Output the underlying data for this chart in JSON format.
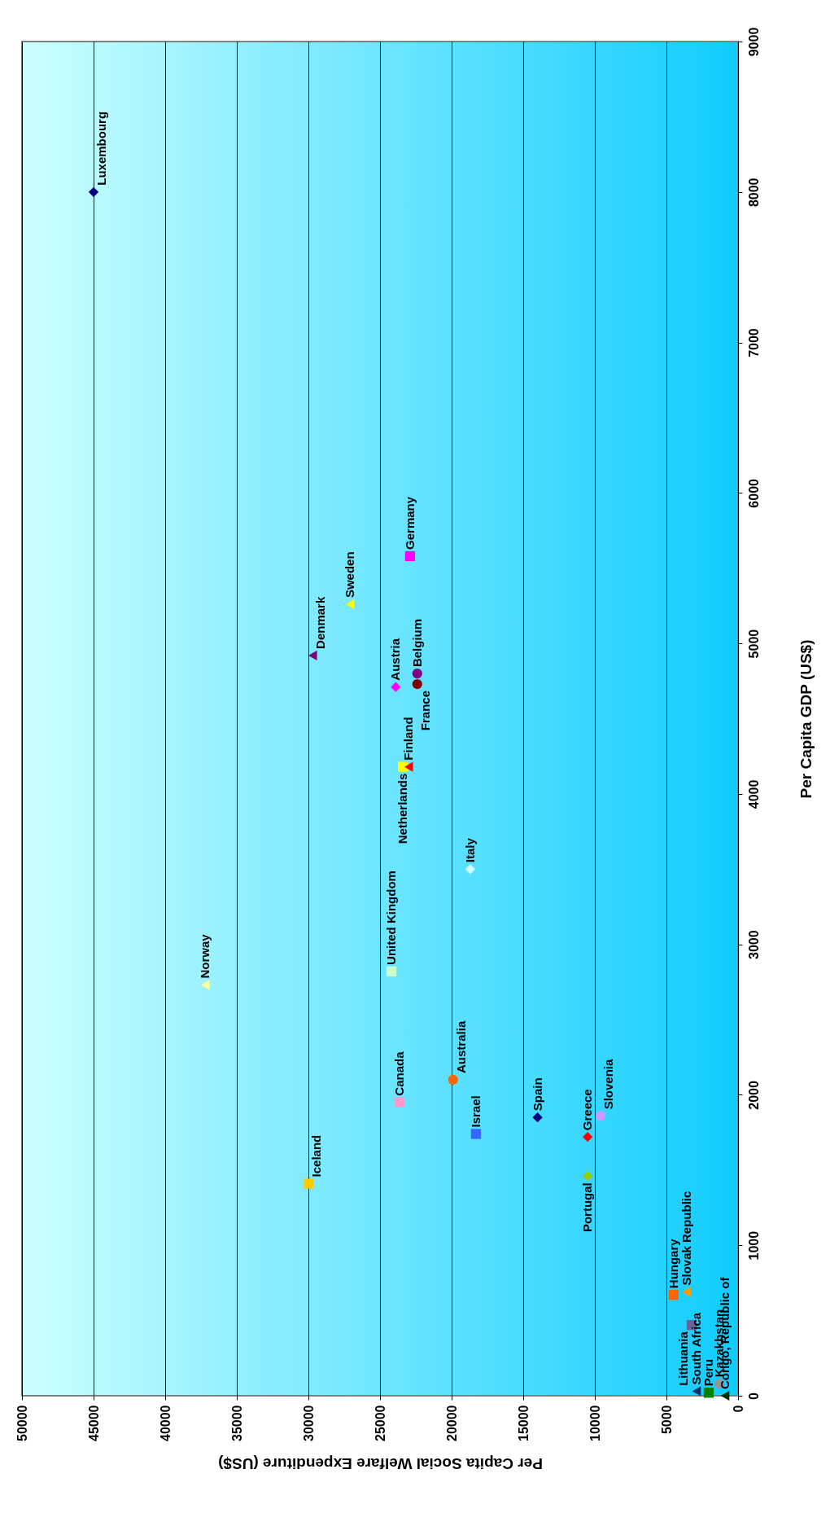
{
  "chart_data": {
    "type": "scatter",
    "xlabel": "Per Capita Social Welfare Expenditure (US$)",
    "ylabel": "Per Capita GDP (US$)",
    "xlim": [
      50000,
      0
    ],
    "xticks": [
      50000,
      45000,
      40000,
      35000,
      30000,
      25000,
      20000,
      15000,
      10000,
      5000,
      0
    ],
    "ylim": [
      0,
      9000
    ],
    "yticks": [
      0,
      1000,
      2000,
      3000,
      4000,
      5000,
      6000,
      7000,
      8000,
      9000
    ],
    "grid": "x",
    "series": [
      {
        "name": "Luxembourg",
        "color": "#000080",
        "marker": "diamond",
        "x": [
          45000
        ],
        "values": [
          8000
        ]
      },
      {
        "name": "Germany",
        "color": "#ff00ff",
        "marker": "square",
        "x": [
          22900
        ],
        "values": [
          5580
        ]
      },
      {
        "name": "Sweden",
        "color": "#ffff00",
        "marker": "triangle",
        "x": [
          27100
        ],
        "values": [
          5260
        ]
      },
      {
        "name": "Denmark",
        "color": "#800080",
        "marker": "triangle",
        "x": [
          29700
        ],
        "values": [
          4920
        ]
      },
      {
        "name": "Austria",
        "color": "#ff00ff",
        "marker": "diamond",
        "x": [
          23900
        ],
        "values": [
          4710
        ]
      },
      {
        "name": "Belgium",
        "color": "#800080",
        "marker": "circle",
        "x": [
          22400
        ],
        "values": [
          4800
        ]
      },
      {
        "name": "France",
        "color": "#800000",
        "marker": "circle",
        "x": [
          22400
        ],
        "values": [
          4730
        ]
      },
      {
        "name": "Netherlands",
        "color": "#ffff00",
        "marker": "square",
        "x": [
          23400
        ],
        "values": [
          4180
        ]
      },
      {
        "name": "Finland",
        "color": "#ff0000",
        "marker": "triangle",
        "x": [
          23000
        ],
        "values": [
          4180
        ]
      },
      {
        "name": "Italy",
        "color": "#ccffff",
        "marker": "diamond",
        "x": [
          18700
        ],
        "values": [
          3500
        ]
      },
      {
        "name": "United Kingdom",
        "color": "#ccffcc",
        "marker": "square",
        "x": [
          24200
        ],
        "values": [
          2820
        ]
      },
      {
        "name": "Norway",
        "color": "#ffff99",
        "marker": "triangle",
        "x": [
          37200
        ],
        "values": [
          2730
        ]
      },
      {
        "name": "Australia",
        "color": "#ff6600",
        "marker": "circle",
        "x": [
          19900
        ],
        "values": [
          2100
        ]
      },
      {
        "name": "Canada",
        "color": "#ff99cc",
        "marker": "square",
        "x": [
          23650
        ],
        "values": [
          1950
        ]
      },
      {
        "name": "Slovenia",
        "color": "#cc99ff",
        "marker": "circle",
        "x": [
          9600
        ],
        "values": [
          1860
        ]
      },
      {
        "name": "Spain",
        "color": "#000080",
        "marker": "diamond",
        "x": [
          14000
        ],
        "values": [
          1850
        ]
      },
      {
        "name": "Israel",
        "color": "#3366ff",
        "marker": "square",
        "x": [
          18300
        ],
        "values": [
          1740
        ]
      },
      {
        "name": "Greece",
        "color": "#ff0000",
        "marker": "diamond",
        "x": [
          10500
        ],
        "values": [
          1720
        ]
      },
      {
        "name": "Portugal",
        "color": "#99cc00",
        "marker": "diamond",
        "x": [
          10500
        ],
        "values": [
          1460
        ]
      },
      {
        "name": "Iceland",
        "color": "#ffcc00",
        "marker": "square",
        "x": [
          30000
        ],
        "values": [
          1410
        ]
      },
      {
        "name": "Slovak Republic",
        "color": "#ff9900",
        "marker": "triangle",
        "x": [
          3600
        ],
        "values": [
          690
        ]
      },
      {
        "name": "Hungary",
        "color": "#ff6600",
        "marker": "square",
        "x": [
          4500
        ],
        "values": [
          670
        ]
      },
      {
        "name": "Lithuania",
        "color": "#666699",
        "marker": "square",
        "x": [
          3240
        ],
        "values": [
          470
        ]
      },
      {
        "name": "Kazakhstan",
        "color": "#969696",
        "marker": "circle",
        "x": [
          1300
        ],
        "values": [
          80
        ]
      },
      {
        "name": "South Africa",
        "color": "#003366",
        "marker": "triangle",
        "x": [
          2900
        ],
        "values": [
          30
        ]
      },
      {
        "name": "Peru",
        "color": "#008000",
        "marker": "square",
        "x": [
          2050
        ],
        "values": [
          20
        ]
      },
      {
        "name": "Congo, Republic of",
        "color": "#003300",
        "marker": "triangle",
        "x": [
          910
        ],
        "values": [
          0
        ]
      }
    ]
  }
}
